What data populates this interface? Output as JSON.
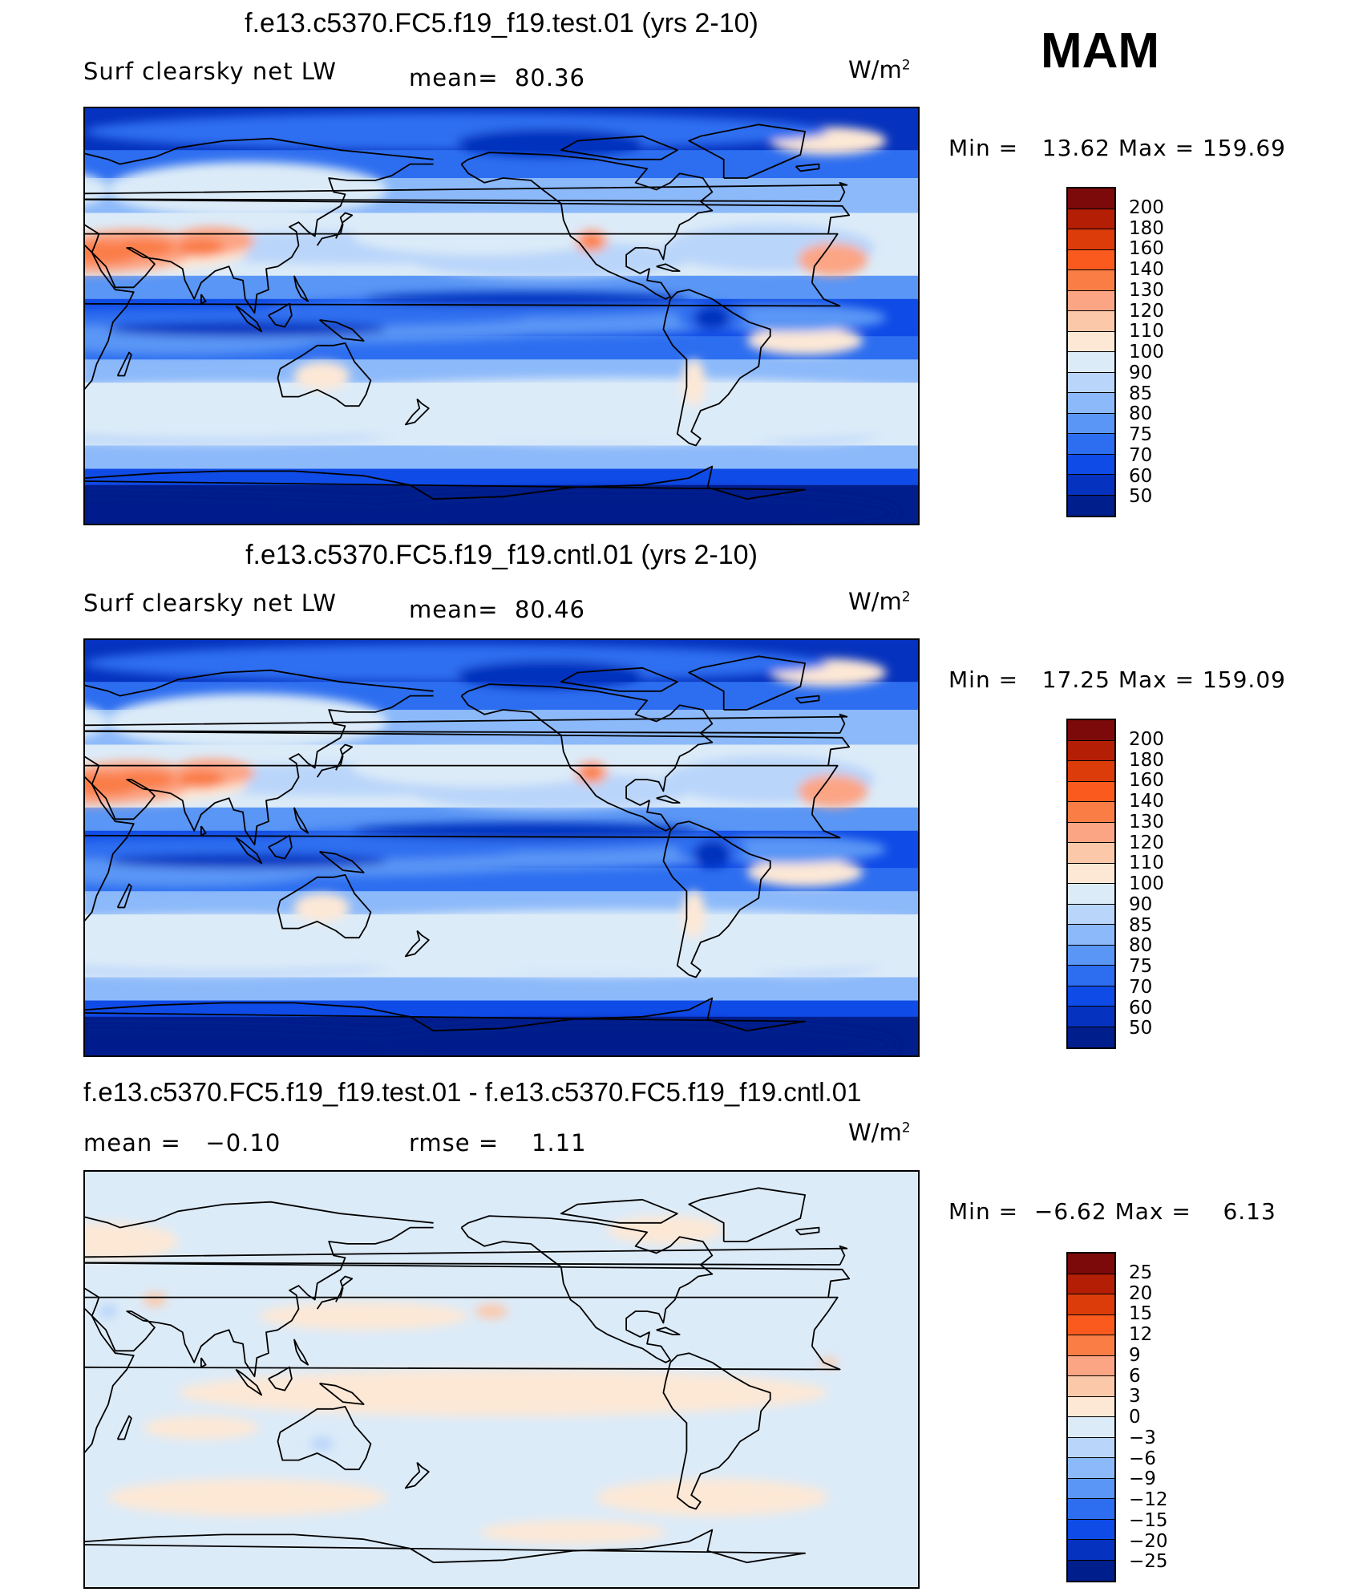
{
  "season": "MAM",
  "units": {
    "base": "W/m",
    "exp": "2"
  },
  "panels": [
    {
      "title": "f.e13.c5370.FC5.f19_f19.test.01 (yrs 2-10)",
      "left_label": "Surf clearsky net LW",
      "mid_label": "mean=  80.36",
      "min_label": "Min =",
      "min_value": "13.62",
      "max_label": "Max =",
      "max_value": "159.69",
      "colorbar": {
        "levels": [
          "200",
          "180",
          "160",
          "140",
          "130",
          "120",
          "110",
          "100",
          "90",
          "85",
          "80",
          "75",
          "70",
          "60",
          "50"
        ],
        "colors": [
          "#7d0a0a",
          "#b41e05",
          "#dc3c0a",
          "#fa5a1e",
          "#fa7d46",
          "#fca585",
          "#fcc8aa",
          "#fde8d6",
          "#dcebf8",
          "#b9d5fa",
          "#8cb9fa",
          "#5a96f5",
          "#2d6ef0",
          "#0f4be6",
          "#0532be",
          "#001e8c"
        ]
      }
    },
    {
      "title": "f.e13.c5370.FC5.f19_f19.cntl.01 (yrs 2-10)",
      "left_label": "Surf clearsky net LW",
      "mid_label": "mean=  80.46",
      "min_label": "Min =",
      "min_value": "17.25",
      "max_label": "Max =",
      "max_value": "159.09",
      "colorbar": {
        "levels": [
          "200",
          "180",
          "160",
          "140",
          "130",
          "120",
          "110",
          "100",
          "90",
          "85",
          "80",
          "75",
          "70",
          "60",
          "50"
        ],
        "colors": [
          "#7d0a0a",
          "#b41e05",
          "#dc3c0a",
          "#fa5a1e",
          "#fa7d46",
          "#fca585",
          "#fcc8aa",
          "#fde8d6",
          "#dcebf8",
          "#b9d5fa",
          "#8cb9fa",
          "#5a96f5",
          "#2d6ef0",
          "#0f4be6",
          "#0532be",
          "#001e8c"
        ]
      }
    },
    {
      "title": "f.e13.c5370.FC5.f19_f19.test.01 - f.e13.c5370.FC5.f19_f19.cntl.01",
      "left_label": "mean =   −0.10",
      "mid_label": "rmse =    1.11",
      "min_label": "Min =",
      "min_value": "−6.62",
      "max_label": "Max =",
      "max_value": "6.13",
      "colorbar": {
        "levels": [
          "25",
          "20",
          "15",
          "12",
          "9",
          "6",
          "3",
          "0",
          "−3",
          "−6",
          "−9",
          "−12",
          "−15",
          "−20",
          "−25"
        ],
        "colors": [
          "#7d0a0a",
          "#b41e05",
          "#dc3c0a",
          "#fa5a1e",
          "#fa7d46",
          "#fca585",
          "#fcc8aa",
          "#fde8d6",
          "#dcebf8",
          "#b9d5fa",
          "#8cb9fa",
          "#5a96f5",
          "#2d6ef0",
          "#0f4be6",
          "#0532be",
          "#001e8c"
        ]
      }
    }
  ]
}
